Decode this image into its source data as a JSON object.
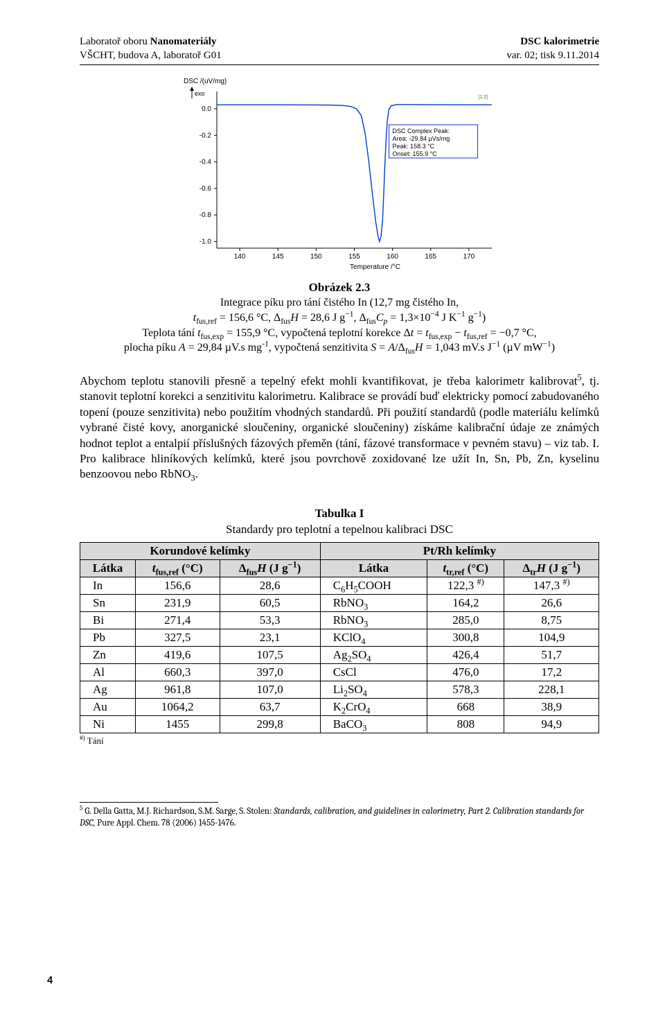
{
  "header": {
    "left1_a": "Laboratoř oboru ",
    "left1_b": "Nanomateriály",
    "left2": "VŠCHT, budova A, laboratoř G01",
    "right1": "DSC kalorimetrie",
    "right2": "var. 02; tisk 9.11.2014"
  },
  "chart": {
    "type": "line",
    "xlim": [
      137,
      173
    ],
    "ylim": [
      -1.05,
      0.12
    ],
    "xticks": [
      140,
      145,
      150,
      155,
      160,
      165,
      170
    ],
    "yticks": [
      -1.0,
      -0.8,
      -0.6,
      -0.4,
      -0.2,
      0.0
    ],
    "x_label": "Temperature /°C",
    "y_label_top": "DSC /(uV/mg)",
    "y_arrow_label": "exo",
    "series_color": "#003bd1",
    "axes_color": "#000000",
    "background_color": "#ffffff",
    "inset_border": "#2030d0",
    "inset_lines": [
      "DSC Complex Peak:",
      "Area:    -29.84 µVs/mg",
      "Peak:   158.3 °C",
      "Onset:  155.9 °C"
    ],
    "small_label": "[1.2]",
    "data": [
      [
        137,
        0.03
      ],
      [
        145,
        0.03
      ],
      [
        150,
        0.029
      ],
      [
        152,
        0.028
      ],
      [
        153.5,
        0.025
      ],
      [
        154.5,
        0.018
      ],
      [
        155.3,
        0.0
      ],
      [
        155.9,
        -0.05
      ],
      [
        156.4,
        -0.18
      ],
      [
        156.9,
        -0.4
      ],
      [
        157.4,
        -0.66
      ],
      [
        157.8,
        -0.85
      ],
      [
        158.1,
        -0.96
      ],
      [
        158.3,
        -1.0
      ],
      [
        158.5,
        -0.96
      ],
      [
        158.7,
        -0.84
      ],
      [
        158.85,
        -0.64
      ],
      [
        159.0,
        -0.42
      ],
      [
        159.15,
        -0.24
      ],
      [
        159.3,
        -0.1
      ],
      [
        159.5,
        -0.01
      ],
      [
        159.8,
        0.022
      ],
      [
        160.5,
        0.032
      ],
      [
        162,
        0.032
      ],
      [
        165,
        0.031
      ],
      [
        170,
        0.03
      ],
      [
        173,
        0.03
      ]
    ]
  },
  "caption": {
    "title": "Obrázek 2.3",
    "line1": "Integrace píku pro tání čistého In (12,7 mg čistého In,",
    "line2_html": "<i>t</i><sub>fus,ref</sub> = 156,6 °C, Δ<sub>fus</sub><i>H</i> = 28,6 J g<sup>−1</sup>, Δ<sub>fus</sub><i>C<sub>p</sub></i> = 1,3×10<sup>−4</sup> J K<sup>−1</sup> g<sup>−1</sup>)",
    "line3_html": "Teplota tání <i>t</i><sub>fus,exp</sub> = 155,9 °C, vypočtená teplotní korekce Δ<i>t</i> = <i>t</i><sub>fus,exp</sub> − <i>t</i><sub>fus,ref</sub> = −0,7 °C,",
    "line4_html": "plocha píku <i>A</i> = 29,84 µV.s mg<sup>-1</sup>, vypočtená senzitivita <i>S</i> = <i>A</i>/Δ<sub>fus</sub><i>H</i> = 1,043 mV.s J<sup>−1</sup> (µV mW<sup>−1</sup>)"
  },
  "paragraph_html": "Abychom teplotu stanovili přesně a tepelný efekt mohli kvantifikovat, je třeba kalorimetr kalibrovat<sup>5</sup>, tj. stanovit teplotní korekci a senzitivitu kalorimetru. Kalibrace se provádí buď elektricky pomocí zabudovaného topení (pouze senzitivita) nebo použitím vhodných standardů. Při použití standardů (podle materiálu kelímků vybrané čisté kovy, anorganické sloučeniny, organické sloučeniny) získáme kalibrační údaje ze známých hodnot teplot a entalpií příslušných fázových přeměn (tání, fázové transformace v pevném stavu) – viz tab. I. Pro kalibrace hliníkových kelímků, které jsou povrchově zoxidované lze užít In, Sn, Pb, Zn, kyselinu benzoovou nebo RbNO<sub>3</sub>.",
  "table": {
    "super_title_bold": "Tabulka I",
    "super_title_rest": "Standardy pro teplotní a tepelnou kalibraci DSC",
    "group_left": "Korundové kelímky",
    "group_right": "Pt/Rh kelímky",
    "col_a": "Látka",
    "col_b_html": "<i>t</i><sub>fus,ref</sub> (°C)",
    "col_c_html": "Δ<sub>fus</sub><i>H</i> (J g<sup>−1</sup>)",
    "col_d": "Látka",
    "col_e_html": "<i>t</i><sub>tr,ref</sub> (°C)",
    "col_f_html": "Δ<sub>tr</sub><i>H</i> (J g<sup>−1</sup>)",
    "rows": [
      [
        "In",
        "156,6",
        "28,6",
        "C<sub>6</sub>H<sub>5</sub>COOH",
        "122,3 <sup>#)</sup>",
        "147,3 <sup>#)</sup>"
      ],
      [
        "Sn",
        "231,9",
        "60,5",
        "RbNO<sub>3</sub>",
        "164,2",
        "26,6"
      ],
      [
        "Bi",
        "271,4",
        "53,3",
        "RbNO<sub>3</sub>",
        "285,0",
        "8,75"
      ],
      [
        "Pb",
        "327,5",
        "23,1",
        "KClO<sub>4</sub>",
        "300,8",
        "104,9"
      ],
      [
        "Zn",
        "419,6",
        "107,5",
        "Ag<sub>2</sub>SO<sub>4</sub>",
        "426,4",
        "51,7"
      ],
      [
        "Al",
        "660,3",
        "397,0",
        "CsCl",
        "476,0",
        "17,2"
      ],
      [
        "Ag",
        "961,8",
        "107,0",
        "Li<sub>2</sub>SO<sub>4</sub>",
        "578,3",
        "228,1"
      ],
      [
        "Au",
        "1064,2",
        "63,7",
        "K<sub>2</sub>CrO<sub>4</sub>",
        "668",
        "38,9"
      ],
      [
        "Ni",
        "1455",
        "299,8",
        "BaCO<sub>3</sub>",
        "808",
        "94,9"
      ]
    ],
    "note_html": "<sup>#)</sup> Tání"
  },
  "footnote_html": "<sup>5</sup> G. Della Gatta, M.J. Richardson, S.M. Sarge, S. Stolen: <i>Standards, calibration, and guidelines in calorimetry, Part 2. Calibration standards for DSC,</i> Pure Appl. Chem. 78 (2006) 1455-1476.",
  "page_number": "4"
}
